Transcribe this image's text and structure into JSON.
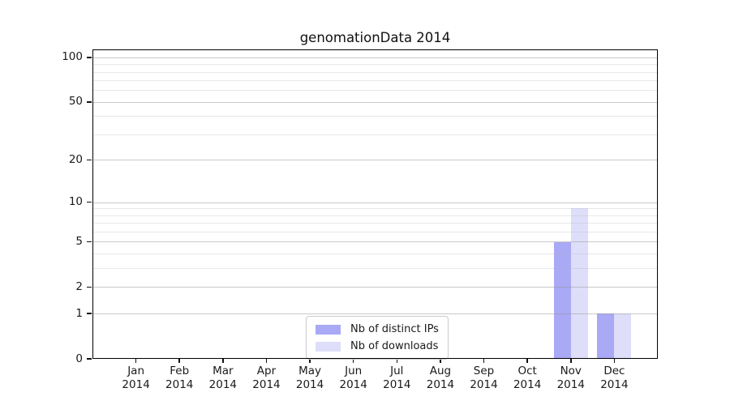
{
  "chart_data": {
    "type": "bar",
    "title": "genomationData 2014",
    "categories": [
      "Jan 2014",
      "Feb 2014",
      "Mar 2014",
      "Apr 2014",
      "May 2014",
      "Jun 2014",
      "Jul 2014",
      "Aug 2014",
      "Sep 2014",
      "Oct 2014",
      "Nov 2014",
      "Dec 2014"
    ],
    "series": [
      {
        "name": "Nb of distinct IPs",
        "color": "#a9a9f5",
        "values": [
          0,
          0,
          0,
          0,
          0,
          0,
          0,
          0,
          0,
          0,
          5,
          1
        ]
      },
      {
        "name": "Nb of downloads",
        "color": "#dedefa",
        "values": [
          0,
          0,
          0,
          0,
          0,
          0,
          0,
          0,
          0,
          0,
          9,
          1
        ]
      }
    ],
    "xlabel": "",
    "ylabel": "",
    "yscale": "log1p",
    "ylim": [
      0,
      112
    ],
    "y_major_ticks": [
      0,
      1,
      2,
      5,
      10,
      20,
      50,
      100
    ],
    "y_minor_ticks": [
      3,
      4,
      6,
      7,
      8,
      9,
      30,
      40,
      60,
      70,
      80,
      90
    ],
    "grid": true,
    "legend_position": "lower center inside"
  }
}
